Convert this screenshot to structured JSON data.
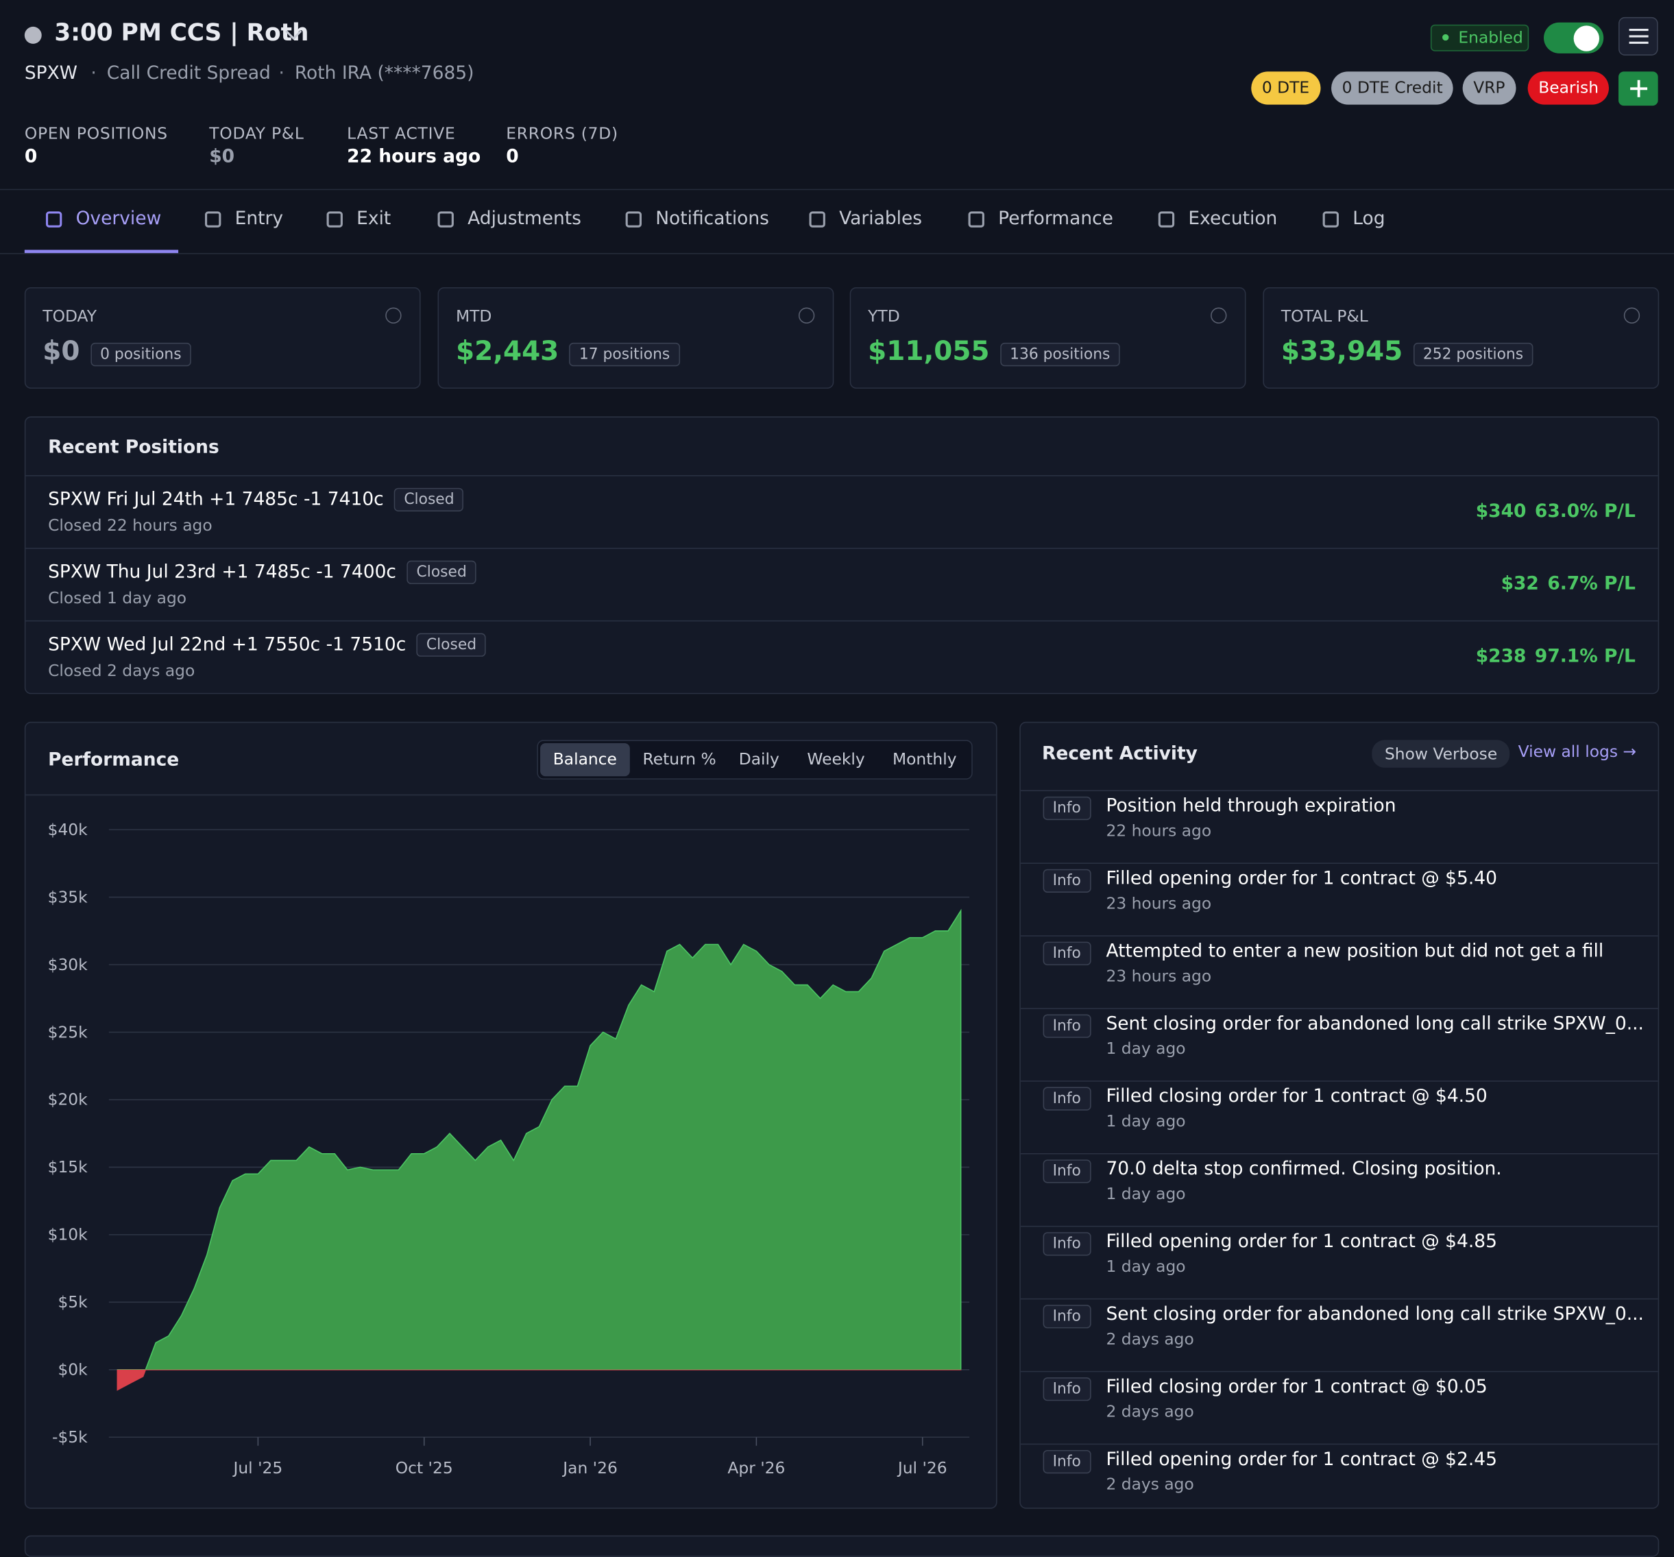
{
  "header": {
    "title": "3:00 PM CCS | Roth",
    "symbol": "SPXW",
    "strategy": "Call Credit Spread",
    "account": "Roth IRA (****7685)",
    "status": "Enabled",
    "tags": [
      "0 DTE",
      "0 DTE Credit",
      "VRP",
      "Bearish"
    ],
    "stats": [
      {
        "label": "OPEN POSITIONS",
        "value": "0"
      },
      {
        "label": "TODAY P&L",
        "value": "$0"
      },
      {
        "label": "LAST ACTIVE",
        "value": "22 hours ago"
      },
      {
        "label": "ERRORS (7D)",
        "value": "0"
      }
    ]
  },
  "tabs": [
    "Overview",
    "Entry",
    "Exit",
    "Adjustments",
    "Notifications",
    "Variables",
    "Performance",
    "Execution",
    "Log"
  ],
  "summary": [
    {
      "label": "TODAY",
      "value": "$0",
      "positions": "0 positions"
    },
    {
      "label": "MTD",
      "value": "$2,443",
      "positions": "17 positions"
    },
    {
      "label": "YTD",
      "value": "$11,055",
      "positions": "136 positions"
    },
    {
      "label": "TOTAL P&L",
      "value": "$33,945",
      "positions": "252 positions"
    }
  ],
  "recent_positions": {
    "title": "Recent Positions",
    "items": [
      {
        "name": "SPXW Fri Jul 24th +1 7485c -1 7410c",
        "status": "Closed",
        "closed": "Closed 22 hours ago",
        "pnl": "$340",
        "pct": "63.0% P/L"
      },
      {
        "name": "SPXW Thu Jul 23rd +1 7485c -1 7400c",
        "status": "Closed",
        "closed": "Closed 1 day ago",
        "pnl": "$32",
        "pct": "6.7% P/L"
      },
      {
        "name": "SPXW Wed Jul 22nd +1 7550c -1 7510c",
        "status": "Closed",
        "closed": "Closed 2 days ago",
        "pnl": "$238",
        "pct": "97.1% P/L"
      }
    ]
  },
  "performance": {
    "title": "Performance",
    "modes": [
      "Balance",
      "Return %",
      "Daily",
      "Weekly",
      "Monthly"
    ]
  },
  "chart_data": {
    "type": "area",
    "values": [
      -1500,
      -1000,
      -500,
      2000,
      2500,
      4000,
      6000,
      8500,
      12000,
      14000,
      14500,
      14500,
      15500,
      15500,
      15500,
      16500,
      16000,
      16000,
      14800,
      15000,
      14800,
      14800,
      14800,
      16000,
      16000,
      16500,
      17500,
      16500,
      15500,
      16500,
      17000,
      15500,
      17500,
      18000,
      20000,
      21000,
      21000,
      24000,
      25000,
      24500,
      27000,
      28500,
      28000,
      31000,
      31500,
      30500,
      31500,
      31500,
      30000,
      31500,
      31000,
      30000,
      29500,
      28500,
      28500,
      27500,
      28500,
      28000,
      28000,
      29000,
      31000,
      31500,
      32000,
      32000,
      32500,
      32500,
      34000
    ],
    "color": "#3d9a4a",
    "negative_color": "#d9404a",
    "xlim": [
      0,
      66
    ],
    "xticks": [
      {
        "value": 11,
        "label": "Jul '25"
      },
      {
        "value": 24,
        "label": "Oct '25"
      },
      {
        "value": 37,
        "label": "Jan '26"
      },
      {
        "value": 50,
        "label": "Apr '26"
      },
      {
        "value": 63,
        "label": "Jul '26"
      }
    ],
    "ylim": [
      -5000,
      40000
    ],
    "yticks": [
      {
        "value": -5000,
        "label": "-$5k"
      },
      {
        "value": 0,
        "label": "$0k"
      },
      {
        "value": 5000,
        "label": "$5k"
      },
      {
        "value": 10000,
        "label": "$10k"
      },
      {
        "value": 15000,
        "label": "$15k"
      },
      {
        "value": 20000,
        "label": "$20k"
      },
      {
        "value": 25000,
        "label": "$25k"
      },
      {
        "value": 30000,
        "label": "$30k"
      },
      {
        "value": 35000,
        "label": "$35k"
      },
      {
        "value": 40000,
        "label": "$40k"
      }
    ],
    "grid": true
  },
  "activity": {
    "title": "Recent Activity",
    "show_verbose": "Show Verbose",
    "view_all": "View all logs →",
    "items": [
      {
        "level": "Info",
        "message": "Position held through expiration",
        "time": "22 hours ago"
      },
      {
        "level": "Info",
        "message": "Filled opening order for 1 contract @ $5.40",
        "time": "23 hours ago"
      },
      {
        "level": "Info",
        "message": "Attempted to enter a new position but did not get a fill",
        "time": "23 hours ago"
      },
      {
        "level": "Info",
        "message": "Sent closing order for abandoned long call strike SPXW_0...",
        "time": "1 day ago"
      },
      {
        "level": "Info",
        "message": "Filled closing order for 1 contract @ $4.50",
        "time": "1 day ago"
      },
      {
        "level": "Info",
        "message": "70.0 delta stop confirmed. Closing position.",
        "time": "1 day ago"
      },
      {
        "level": "Info",
        "message": "Filled opening order for 1 contract @ $4.85",
        "time": "1 day ago"
      },
      {
        "level": "Info",
        "message": "Sent closing order for abandoned long call strike SPXW_0...",
        "time": "2 days ago"
      },
      {
        "level": "Info",
        "message": "Filled closing order for 1 contract @ $0.05",
        "time": "2 days ago"
      },
      {
        "level": "Info",
        "message": "Filled opening order for 1 contract @ $2.45",
        "time": "2 days ago"
      }
    ]
  }
}
